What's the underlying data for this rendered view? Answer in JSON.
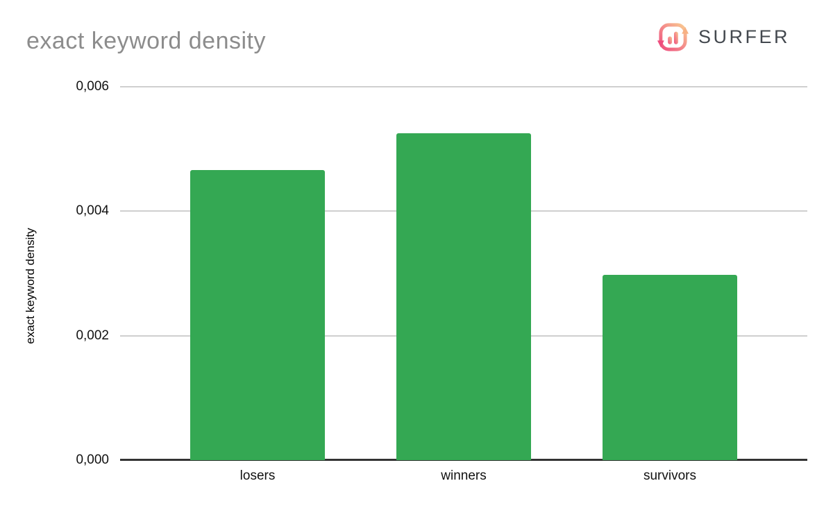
{
  "header": {
    "title": "exact keyword density",
    "logo": {
      "text": "SURFER"
    }
  },
  "chart_data": {
    "type": "bar",
    "title": "exact keyword density",
    "categories": [
      "losers",
      "winners",
      "survivors"
    ],
    "values": [
      0.00466,
      0.00525,
      0.00298
    ],
    "xlabel": "",
    "ylabel": "exact keyword density",
    "ylim": [
      0,
      0.006
    ],
    "yticks": [
      0,
      0.002,
      0.004,
      0.006
    ],
    "ytick_labels": [
      "0,000",
      "0,002",
      "0,004",
      "0,006"
    ],
    "decimal_separator": ",",
    "bar_color": "#34a853",
    "grid": true,
    "legend": false
  },
  "colors": {
    "bar_green": "#34a853",
    "gridline": "#cfcfcf",
    "axis": "#333333",
    "title_gray": "#8c8c8c",
    "logo_text": "#43484e",
    "logo_pink": "#ee4d7e",
    "logo_peach": "#f9c98c"
  }
}
